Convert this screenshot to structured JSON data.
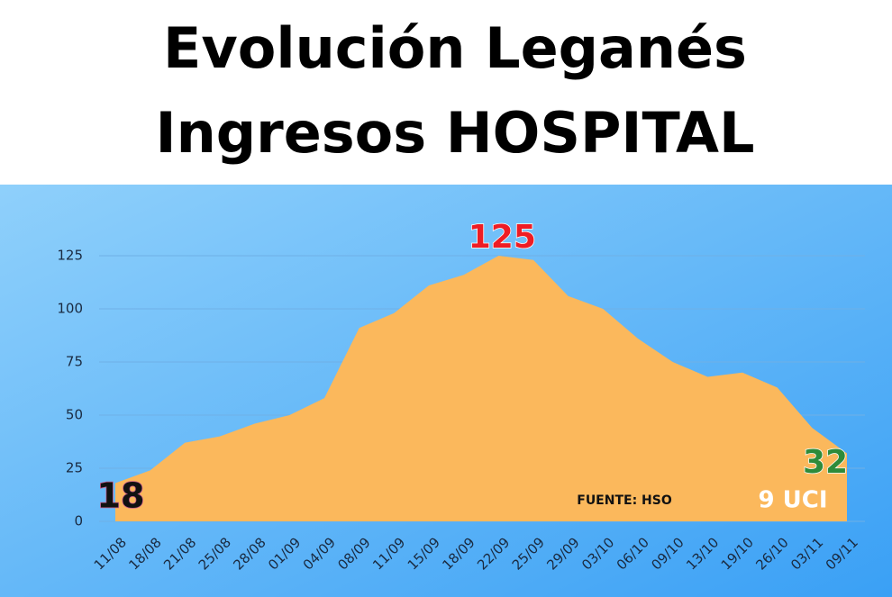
{
  "chart_data": {
    "type": "area",
    "title": "Evolución Leganés",
    "subtitle": "Ingresos HOSPITAL",
    "categories": [
      "11/08",
      "18/08",
      "21/08",
      "25/08",
      "28/08",
      "01/09",
      "04/09",
      "08/09",
      "11/09",
      "15/09",
      "18/09",
      "22/09",
      "25/09",
      "29/09",
      "03/10",
      "06/10",
      "09/10",
      "13/10",
      "19/10",
      "26/10",
      "03/11",
      "09/11"
    ],
    "values": [
      18,
      24,
      37,
      40,
      46,
      50,
      58,
      91,
      98,
      111,
      116,
      125,
      123,
      106,
      100,
      86,
      75,
      68,
      70,
      63,
      44,
      32
    ],
    "color": "#fbb85c",
    "ylim": [
      0,
      125
    ],
    "yticks": [
      0,
      25,
      50,
      75,
      100,
      125
    ],
    "grid": true,
    "annotations": [
      "FUENTE: HSO",
      "9 UCI"
    ]
  }
}
